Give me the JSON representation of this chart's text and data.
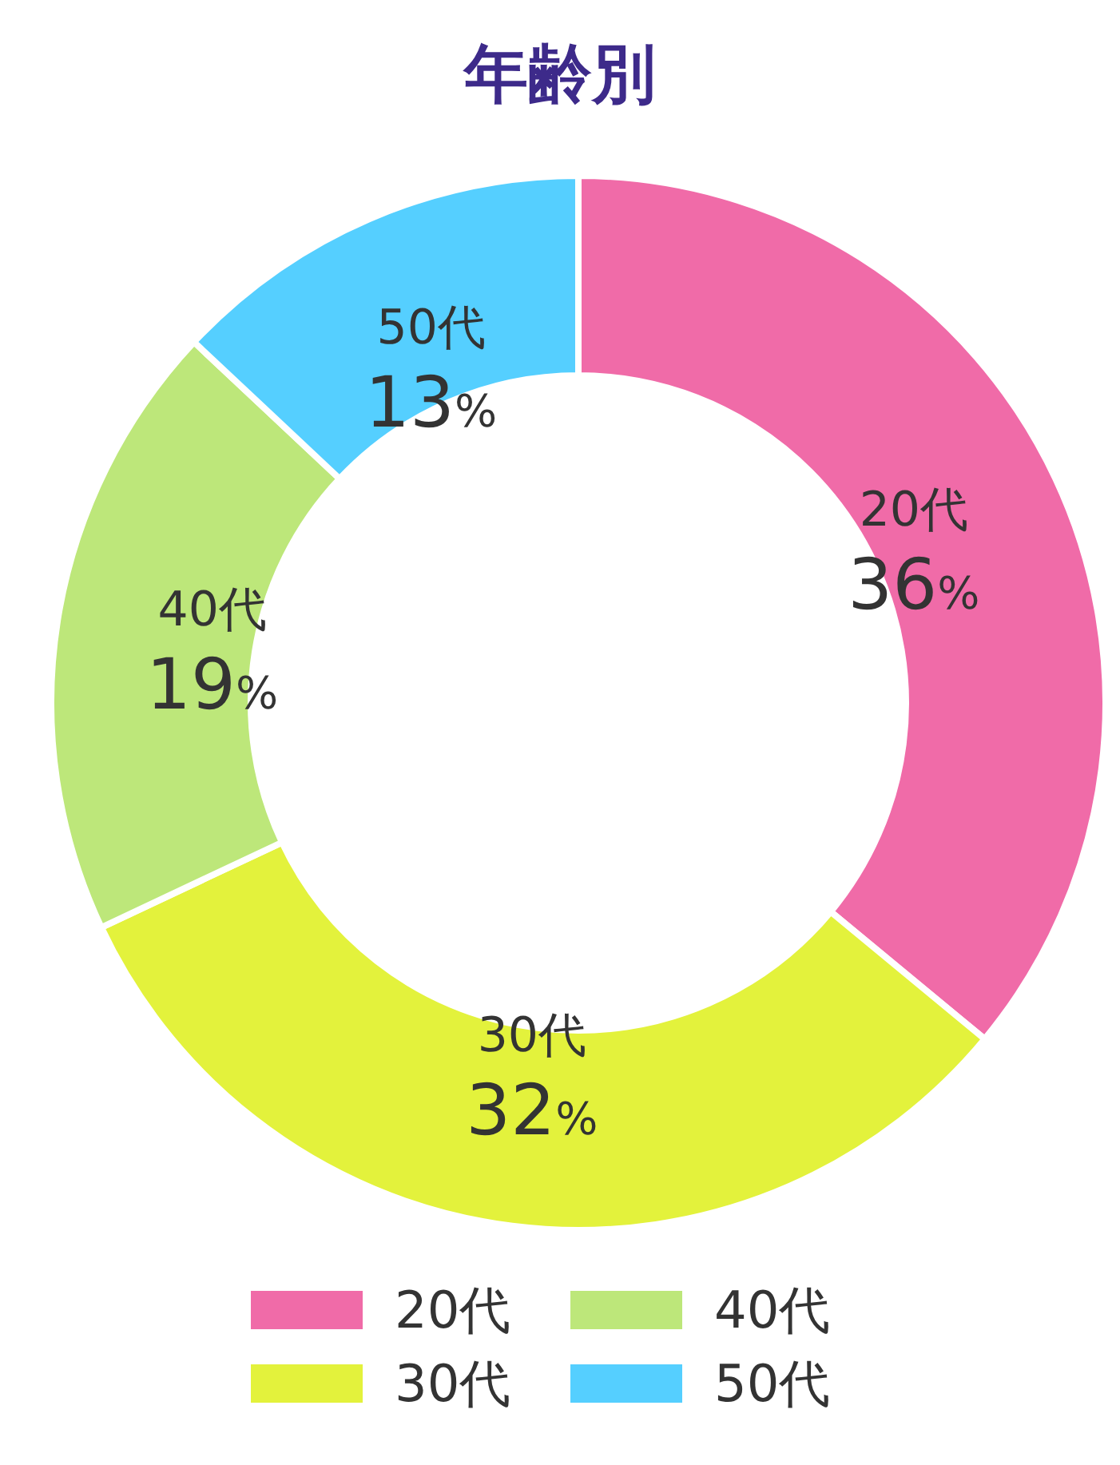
{
  "chart_data": {
    "type": "donut",
    "title": "年齢別",
    "categories": [
      "20代",
      "30代",
      "40代",
      "50代"
    ],
    "values": [
      36,
      32,
      19,
      13
    ],
    "colors": [
      "#f06ba8",
      "#e3f23c",
      "#bde77a",
      "#55cfff"
    ],
    "value_labels": [
      "36%",
      "32%",
      "19%",
      "13%"
    ],
    "legend": "bottom"
  }
}
